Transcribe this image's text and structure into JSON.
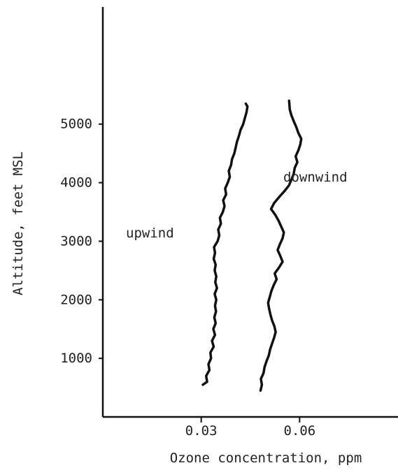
{
  "chart_data": {
    "type": "line",
    "xlabel": "Ozone concentration, ppm",
    "ylabel": "Altitude, feet MSL",
    "xlim": [
      0.0,
      0.09
    ],
    "ylim": [
      0,
      7000
    ],
    "grid": false,
    "x_ticks": [
      {
        "value": 0.03,
        "label": "0.03"
      },
      {
        "value": 0.06,
        "label": "0.06"
      }
    ],
    "y_ticks": [
      {
        "value": 1000,
        "label": "1000"
      },
      {
        "value": 2000,
        "label": "2000"
      },
      {
        "value": 3000,
        "label": "3000"
      },
      {
        "value": 4000,
        "label": "4000"
      },
      {
        "value": 5000,
        "label": "5000"
      }
    ],
    "annotations": [
      {
        "text": "upwind",
        "series": "upwind"
      },
      {
        "text": "downwind",
        "series": "downwind"
      }
    ],
    "series": [
      {
        "name": "upwind",
        "points": [
          [
            0.0305,
            550
          ],
          [
            0.0318,
            600
          ],
          [
            0.0315,
            700
          ],
          [
            0.0325,
            800
          ],
          [
            0.0322,
            900
          ],
          [
            0.033,
            1000
          ],
          [
            0.0328,
            1100
          ],
          [
            0.0338,
            1200
          ],
          [
            0.0333,
            1300
          ],
          [
            0.0342,
            1400
          ],
          [
            0.0337,
            1500
          ],
          [
            0.0344,
            1600
          ],
          [
            0.034,
            1700
          ],
          [
            0.0345,
            1800
          ],
          [
            0.0342,
            1900
          ],
          [
            0.0346,
            2000
          ],
          [
            0.0341,
            2100
          ],
          [
            0.0348,
            2200
          ],
          [
            0.0343,
            2300
          ],
          [
            0.0346,
            2400
          ],
          [
            0.0341,
            2500
          ],
          [
            0.0344,
            2600
          ],
          [
            0.0338,
            2700
          ],
          [
            0.0342,
            2800
          ],
          [
            0.0339,
            2900
          ],
          [
            0.035,
            3000
          ],
          [
            0.0355,
            3100
          ],
          [
            0.0352,
            3200
          ],
          [
            0.036,
            3300
          ],
          [
            0.0357,
            3400
          ],
          [
            0.0366,
            3500
          ],
          [
            0.0371,
            3600
          ],
          [
            0.0367,
            3700
          ],
          [
            0.0376,
            3800
          ],
          [
            0.0373,
            3900
          ],
          [
            0.0381,
            4000
          ],
          [
            0.0387,
            4100
          ],
          [
            0.0384,
            4200
          ],
          [
            0.0391,
            4300
          ],
          [
            0.0394,
            4400
          ],
          [
            0.0401,
            4500
          ],
          [
            0.0405,
            4600
          ],
          [
            0.0409,
            4700
          ],
          [
            0.0415,
            4800
          ],
          [
            0.042,
            4900
          ],
          [
            0.0428,
            5000
          ],
          [
            0.0433,
            5100
          ],
          [
            0.0438,
            5200
          ],
          [
            0.0441,
            5300
          ],
          [
            0.0436,
            5350
          ]
        ]
      },
      {
        "name": "downwind",
        "points": [
          [
            0.0481,
            450
          ],
          [
            0.0485,
            550
          ],
          [
            0.0482,
            650
          ],
          [
            0.049,
            750
          ],
          [
            0.0493,
            850
          ],
          [
            0.0499,
            950
          ],
          [
            0.0506,
            1050
          ],
          [
            0.051,
            1150
          ],
          [
            0.0516,
            1250
          ],
          [
            0.0522,
            1350
          ],
          [
            0.0527,
            1450
          ],
          [
            0.0523,
            1550
          ],
          [
            0.0516,
            1650
          ],
          [
            0.0511,
            1750
          ],
          [
            0.0507,
            1850
          ],
          [
            0.0504,
            1950
          ],
          [
            0.0509,
            2050
          ],
          [
            0.0514,
            2150
          ],
          [
            0.0521,
            2250
          ],
          [
            0.053,
            2350
          ],
          [
            0.0524,
            2450
          ],
          [
            0.0537,
            2550
          ],
          [
            0.0548,
            2650
          ],
          [
            0.0541,
            2750
          ],
          [
            0.0533,
            2850
          ],
          [
            0.054,
            2950
          ],
          [
            0.0548,
            3050
          ],
          [
            0.0552,
            3150
          ],
          [
            0.0544,
            3250
          ],
          [
            0.0536,
            3350
          ],
          [
            0.0526,
            3450
          ],
          [
            0.0513,
            3550
          ],
          [
            0.0522,
            3650
          ],
          [
            0.0537,
            3750
          ],
          [
            0.0553,
            3850
          ],
          [
            0.0567,
            3950
          ],
          [
            0.0575,
            4050
          ],
          [
            0.0582,
            4150
          ],
          [
            0.0585,
            4250
          ],
          [
            0.0593,
            4350
          ],
          [
            0.0588,
            4450
          ],
          [
            0.0596,
            4550
          ],
          [
            0.0602,
            4650
          ],
          [
            0.0605,
            4750
          ],
          [
            0.0596,
            4850
          ],
          [
            0.059,
            4950
          ],
          [
            0.0582,
            5050
          ],
          [
            0.0575,
            5150
          ],
          [
            0.057,
            5250
          ],
          [
            0.0568,
            5400
          ]
        ]
      }
    ]
  }
}
